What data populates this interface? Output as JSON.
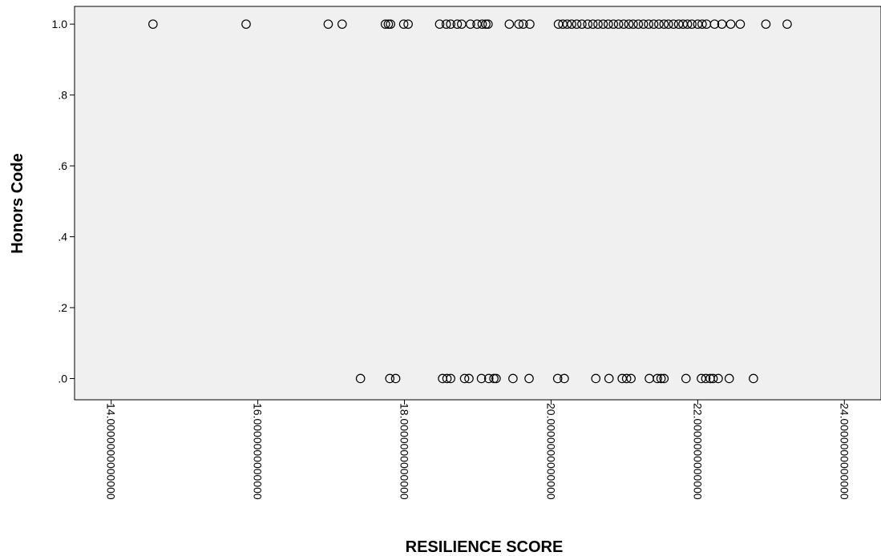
{
  "chart_data": {
    "type": "scatter",
    "title": "",
    "xlabel": "RESILIENCE SCORE",
    "ylabel": "Honors Code",
    "xlim": [
      13.5,
      24.5
    ],
    "ylim": [
      -0.06,
      1.05
    ],
    "x_ticks": [
      {
        "value": 14,
        "label": "14.0000000000000"
      },
      {
        "value": 16,
        "label": "16.0000000000000"
      },
      {
        "value": 18,
        "label": "18.0000000000000"
      },
      {
        "value": 20,
        "label": "20.0000000000000"
      },
      {
        "value": 22,
        "label": "22.0000000000000"
      },
      {
        "value": 24,
        "label": "24.0000000000000"
      }
    ],
    "y_ticks": [
      {
        "value": 0.0,
        "label": ".0"
      },
      {
        "value": 0.2,
        "label": ".2"
      },
      {
        "value": 0.4,
        "label": ".4"
      },
      {
        "value": 0.6,
        "label": ".6"
      },
      {
        "value": 0.8,
        "label": ".8"
      },
      {
        "value": 1.0,
        "label": "1.0"
      }
    ],
    "grid": false,
    "plot_background": "#f0f0f0",
    "marker": "open-circle",
    "marker_color": "#000000",
    "series": [
      {
        "y": 1.0,
        "x": [
          14.57,
          15.84,
          16.96,
          17.15,
          17.74,
          17.78,
          17.81,
          17.99,
          18.05,
          18.48,
          18.57,
          18.63,
          18.72,
          18.78,
          18.9,
          18.99,
          19.06,
          19.11,
          19.14,
          19.43,
          19.56,
          19.62,
          19.71,
          20.1,
          20.16,
          20.22,
          20.28,
          20.35,
          20.42,
          20.5,
          20.57,
          20.64,
          20.71,
          20.78,
          20.85,
          20.92,
          20.99,
          21.06,
          21.12,
          21.19,
          21.26,
          21.33,
          21.4,
          21.47,
          21.54,
          21.6,
          21.67,
          21.74,
          21.8,
          21.86,
          21.92,
          22.0,
          22.06,
          22.12,
          22.23,
          22.33,
          22.45,
          22.58,
          22.93,
          23.22
        ]
      },
      {
        "y": 0.0,
        "x": [
          17.4,
          17.8,
          17.88,
          18.52,
          18.58,
          18.63,
          18.82,
          18.88,
          19.05,
          19.15,
          19.22,
          19.25,
          19.48,
          19.7,
          20.09,
          20.18,
          20.61,
          20.79,
          20.97,
          21.03,
          21.09,
          21.34,
          21.45,
          21.5,
          21.54,
          21.84,
          22.05,
          22.11,
          22.17,
          22.21,
          22.28,
          22.43,
          22.76
        ]
      }
    ]
  }
}
